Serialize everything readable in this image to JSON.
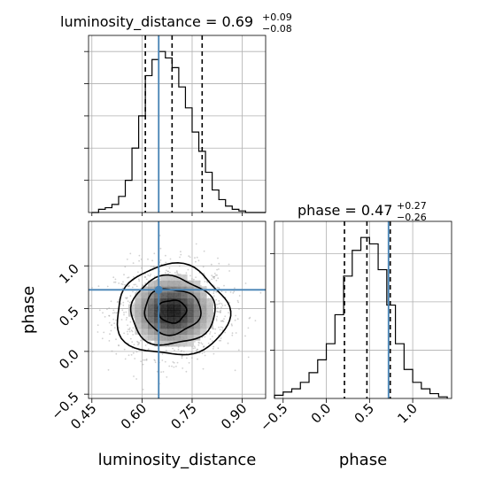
{
  "figure": {
    "xlabel_left": "luminosity_distance",
    "xlabel_right": "phase",
    "ylabel_left": "phase"
  },
  "titles": {
    "ld_main": "luminosity_distance = 0.69",
    "ld_plus": "+0.09",
    "ld_minus": "−0.08",
    "ph_main": "phase = 0.47",
    "ph_plus": "+0.27",
    "ph_minus": "−0.26"
  },
  "colors": {
    "truth": "#4682b4",
    "hist": "#000000",
    "grid": "#b0b0b0",
    "density_dark": "#000000",
    "scatter": "#9a9a9a"
  },
  "chart_data": [
    {
      "type": "histogram",
      "panel": "luminosity_distance marginal",
      "bin_edges": [
        0.45,
        0.47,
        0.49,
        0.51,
        0.53,
        0.55,
        0.57,
        0.59,
        0.61,
        0.63,
        0.65,
        0.67,
        0.69,
        0.71,
        0.73,
        0.75,
        0.77,
        0.79,
        0.81,
        0.83,
        0.85,
        0.87,
        0.89,
        0.91,
        0.93,
        0.95,
        0.97
      ],
      "counts": [
        0,
        2,
        3,
        5,
        10,
        20,
        40,
        60,
        85,
        95,
        100,
        96,
        90,
        78,
        65,
        50,
        38,
        25,
        14,
        8,
        4,
        2,
        1,
        0,
        0,
        0
      ],
      "quantiles": [
        0.61,
        0.69,
        0.78
      ],
      "truth": 0.65,
      "xlim": [
        0.44,
        0.97
      ],
      "ylim": [
        0,
        110
      ],
      "y_tick_values": [
        20,
        40,
        60,
        80,
        100
      ]
    },
    {
      "type": "histogram",
      "panel": "phase marginal",
      "bin_edges": [
        -0.6,
        -0.5,
        -0.4,
        -0.3,
        -0.2,
        -0.1,
        0.0,
        0.1,
        0.2,
        0.3,
        0.4,
        0.5,
        0.6,
        0.7,
        0.8,
        0.9,
        1.0,
        1.1,
        1.2,
        1.3,
        1.4
      ],
      "counts": [
        2,
        4,
        6,
        10,
        16,
        24,
        34,
        52,
        76,
        92,
        100,
        96,
        80,
        58,
        34,
        18,
        10,
        6,
        3,
        1
      ],
      "quantiles": [
        0.21,
        0.47,
        0.74
      ],
      "truth": 0.72,
      "xlim": [
        -0.6,
        1.45
      ],
      "ylim": [
        0,
        110
      ],
      "x_ticks": [
        "−0.5",
        "0.0",
        "0.5",
        "1.0"
      ],
      "x_tick_values": [
        -0.5,
        0.0,
        0.5,
        1.0
      ],
      "y_tick_values": [
        30,
        60,
        90
      ]
    },
    {
      "type": "density2d",
      "panel": "phase vs luminosity_distance",
      "x_name": "luminosity_distance",
      "y_name": "phase",
      "xlim": [
        0.44,
        0.97
      ],
      "ylim": [
        -0.55,
        1.52
      ],
      "x_ticks": [
        "0.45",
        "0.60",
        "0.75",
        "0.90"
      ],
      "x_tick_values": [
        0.45,
        0.6,
        0.75,
        0.9
      ],
      "y_ticks": [
        "−0.5",
        "0.0",
        "0.5",
        "1.0"
      ],
      "y_tick_values": [
        -0.5,
        0.0,
        0.5,
        1.0
      ],
      "center": [
        0.69,
        0.47
      ],
      "sigma": [
        0.08,
        0.27
      ],
      "contour_levels": [
        0.5,
        1.0,
        1.5,
        2.0
      ],
      "truth": [
        0.65,
        0.72
      ],
      "grid": true
    }
  ]
}
